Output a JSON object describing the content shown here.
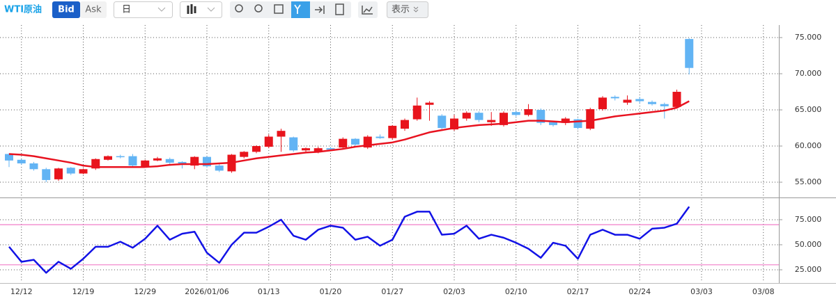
{
  "toolbar": {
    "title": "WTI原油",
    "bid": "Bid",
    "ask": "Ask",
    "period": "日",
    "display": "表示"
  },
  "chart_data": [
    {
      "type": "candlestick",
      "categories": [
        null,
        "12/12",
        null,
        null,
        null,
        null,
        "12/19",
        null,
        null,
        null,
        null,
        "12/29",
        null,
        null,
        null,
        null,
        "2026/01/06",
        null,
        null,
        null,
        null,
        "01/13",
        null,
        null,
        null,
        null,
        "01/20",
        null,
        null,
        null,
        null,
        "01/27",
        null,
        null,
        null,
        null,
        "02/03",
        null,
        null,
        null,
        null,
        "02/10",
        null,
        null,
        null,
        null,
        "02/17",
        null,
        null,
        null,
        null,
        "02/24",
        null,
        null,
        null,
        null,
        "03/03",
        null,
        null,
        null,
        null,
        "03/08",
        null
      ],
      "open": [
        58.9,
        58.1,
        57.6,
        56.8,
        55.4,
        57.0,
        56.2,
        56.9,
        58.1,
        58.6,
        58.6,
        57.2,
        58.0,
        58.2,
        57.8,
        57.3,
        58.5,
        57.3,
        56.5,
        58.5,
        59.2,
        59.9,
        61.3,
        61.2,
        59.4,
        59.2,
        59.7,
        59.8,
        61.0,
        59.8,
        61.3,
        61.1,
        62.4,
        63.7,
        65.7,
        64.2,
        62.3,
        63.8,
        64.6,
        63.3,
        62.9,
        64.7,
        64.3,
        65.0,
        63.3,
        63.2,
        63.7,
        62.4,
        65.1,
        66.8,
        66.0,
        66.5,
        66.1,
        65.8,
        65.4,
        74.8,
        null,
        null,
        null,
        null,
        null,
        null,
        null
      ],
      "high": [
        59.0,
        58.2,
        57.8,
        57.0,
        57.0,
        57.1,
        56.9,
        58.3,
        58.7,
        58.8,
        58.9,
        58.1,
        58.5,
        58.4,
        57.9,
        58.6,
        58.6,
        57.6,
        58.9,
        59.3,
        60.1,
        61.6,
        62.4,
        61.3,
        59.8,
        59.9,
        59.9,
        61.2,
        61.1,
        61.5,
        61.6,
        62.9,
        63.8,
        66.7,
        66.2,
        64.4,
        64.3,
        64.8,
        64.8,
        64.7,
        64.8,
        64.9,
        65.8,
        65.2,
        63.4,
        64.0,
        63.8,
        65.3,
        66.9,
        67.0,
        67.0,
        66.8,
        66.3,
        66.0,
        67.8,
        74.9,
        null,
        null,
        null,
        null,
        null,
        null,
        null
      ],
      "low": [
        57.1,
        57.4,
        56.6,
        55.0,
        55.2,
        56.0,
        56.1,
        56.7,
        58.0,
        58.3,
        57.1,
        57.1,
        57.9,
        57.3,
        56.9,
        56.8,
        57.0,
        56.4,
        56.3,
        58.3,
        59.0,
        59.7,
        59.2,
        59.2,
        59.2,
        59.0,
        59.3,
        59.6,
        59.9,
        59.6,
        61.0,
        60.9,
        62.1,
        63.5,
        63.5,
        62.3,
        62.1,
        63.5,
        63.3,
        62.8,
        62.7,
        64.1,
        64.1,
        62.9,
        62.7,
        62.9,
        62.3,
        62.2,
        64.9,
        66.3,
        65.7,
        65.9,
        65.6,
        63.8,
        65.2,
        69.9,
        null,
        null,
        null,
        null,
        null,
        null,
        null
      ],
      "close": [
        58.0,
        57.6,
        56.8,
        55.3,
        56.9,
        56.2,
        56.8,
        58.2,
        58.6,
        58.5,
        57.3,
        58.0,
        58.3,
        57.7,
        57.6,
        58.5,
        57.2,
        56.6,
        58.8,
        59.2,
        60.0,
        61.3,
        62.1,
        59.4,
        59.7,
        59.7,
        59.5,
        61.0,
        60.2,
        61.3,
        61.1,
        62.8,
        63.6,
        65.6,
        66.0,
        62.5,
        63.8,
        64.6,
        63.6,
        63.6,
        64.6,
        64.3,
        65.1,
        63.2,
        62.9,
        63.8,
        62.5,
        65.1,
        66.7,
        66.6,
        66.4,
        66.2,
        65.8,
        65.5,
        67.5,
        70.8,
        null,
        null,
        null,
        null,
        null,
        null,
        null
      ],
      "up_color": "#e8141c",
      "down_color": "#62b4f4",
      "lines": [
        {
          "color": "#e8121f",
          "values": [
            58.9,
            58.8,
            58.6,
            58.3,
            58.0,
            57.7,
            57.3,
            57.1,
            57.1,
            57.1,
            57.1,
            57.1,
            57.2,
            57.4,
            57.5,
            57.5,
            57.5,
            57.6,
            57.7,
            58.0,
            58.3,
            58.5,
            58.7,
            58.9,
            59.1,
            59.2,
            59.4,
            59.6,
            59.9,
            60.1,
            60.3,
            60.5,
            60.9,
            61.4,
            61.9,
            62.2,
            62.5,
            62.7,
            62.9,
            63.0,
            63.1,
            63.3,
            63.5,
            63.5,
            63.4,
            63.3,
            63.4,
            63.5,
            63.8,
            64.1,
            64.3,
            64.5,
            64.7,
            64.9,
            65.3,
            66.2,
            null,
            null,
            null,
            null,
            null,
            null,
            null
          ]
        }
      ],
      "ylim": [
        53.08,
        76.54
      ],
      "yticks": [
        {
          "value": 55,
          "label": "55.000"
        },
        {
          "value": 60,
          "label": "60.000"
        },
        {
          "value": 65,
          "label": "65.000"
        },
        {
          "value": 70,
          "label": "70.000"
        },
        {
          "value": 75,
          "label": "75.000"
        }
      ],
      "grid": true
    },
    {
      "type": "line",
      "lines": [
        {
          "color": "#1212e6",
          "values": [
            48,
            33,
            35,
            22,
            33,
            26,
            36,
            48,
            48,
            53,
            47,
            56,
            69,
            55,
            61,
            63,
            42,
            32,
            50,
            62,
            62,
            68,
            75,
            59,
            55,
            65,
            69,
            67,
            55,
            58,
            49,
            55,
            78,
            83,
            83,
            60,
            61,
            69,
            56,
            60,
            57,
            52,
            46,
            37,
            52,
            49,
            36,
            60,
            65,
            60,
            60,
            56,
            66,
            67,
            71,
            88,
            null,
            null,
            null,
            null,
            null,
            null,
            null
          ]
        }
      ],
      "hlines": [
        70,
        30
      ],
      "hline_color": "#f07cc8",
      "ylim": [
        13.2,
        94.4
      ],
      "yticks": [
        {
          "value": 25,
          "label": "25.000"
        },
        {
          "value": 50,
          "label": "50.000"
        },
        {
          "value": 75,
          "label": "75.000"
        }
      ],
      "grid": true
    }
  ]
}
